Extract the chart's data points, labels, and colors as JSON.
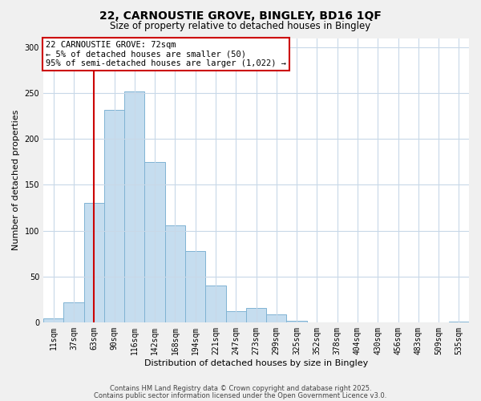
{
  "title": "22, CARNOUSTIE GROVE, BINGLEY, BD16 1QF",
  "subtitle": "Size of property relative to detached houses in Bingley",
  "xlabel": "Distribution of detached houses by size in Bingley",
  "ylabel": "Number of detached properties",
  "bar_labels": [
    "11sqm",
    "37sqm",
    "63sqm",
    "90sqm",
    "116sqm",
    "142sqm",
    "168sqm",
    "194sqm",
    "221sqm",
    "247sqm",
    "273sqm",
    "299sqm",
    "325sqm",
    "352sqm",
    "378sqm",
    "404sqm",
    "430sqm",
    "456sqm",
    "483sqm",
    "509sqm",
    "535sqm"
  ],
  "bar_heights": [
    4,
    22,
    130,
    232,
    252,
    175,
    106,
    78,
    40,
    12,
    16,
    9,
    2,
    0,
    0,
    0,
    0,
    0,
    0,
    0,
    1
  ],
  "bar_color": "#c5ddef",
  "bar_edge_color": "#7fb3d3",
  "vline_x_idx": 2,
  "vline_color": "#cc0000",
  "annotation_title": "22 CARNOUSTIE GROVE: 72sqm",
  "annotation_line1": "← 5% of detached houses are smaller (50)",
  "annotation_line2": "95% of semi-detached houses are larger (1,022) →",
  "annotation_box_color": "#cc0000",
  "annotation_bg": "#ffffff",
  "ylim": [
    0,
    310
  ],
  "yticks": [
    0,
    50,
    100,
    150,
    200,
    250,
    300
  ],
  "footer1": "Contains HM Land Registry data © Crown copyright and database right 2025.",
  "footer2": "Contains public sector information licensed under the Open Government Licence v3.0.",
  "background_color": "#f0f0f0",
  "plot_background_color": "#ffffff",
  "grid_color": "#c8d8e8",
  "title_fontsize": 10,
  "subtitle_fontsize": 8.5,
  "axis_label_fontsize": 8,
  "tick_fontsize": 7,
  "annotation_fontsize": 7.5,
  "footer_fontsize": 6
}
